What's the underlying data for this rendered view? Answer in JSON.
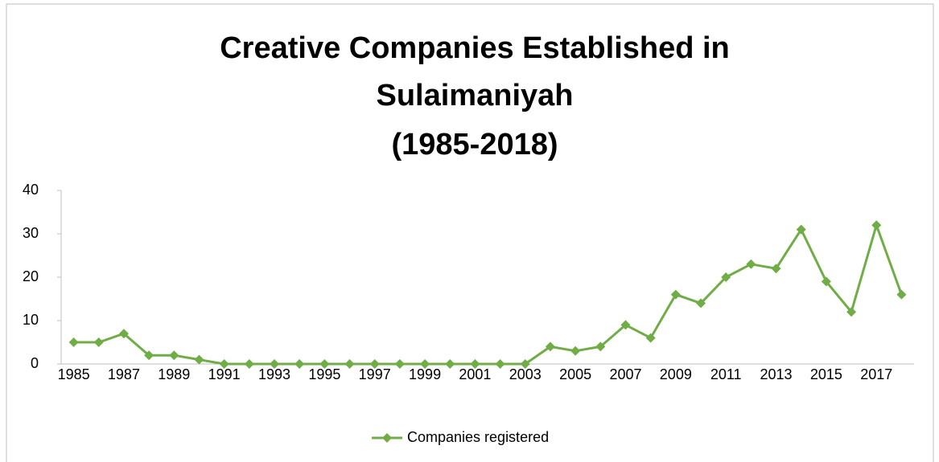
{
  "chart_data": {
    "type": "line",
    "title": [
      "Creative Companies Established in",
      "Sulaimaniyah",
      "(1985-2018)"
    ],
    "categories": [
      "1985",
      null,
      "1987",
      null,
      "1989",
      null,
      "1991",
      null,
      "1993",
      null,
      "1995",
      null,
      "1997",
      null,
      "1999",
      null,
      "2001",
      null,
      "2003",
      null,
      "2005",
      null,
      "2007",
      null,
      "2009",
      null,
      "2011",
      null,
      "2013",
      null,
      "2015",
      null,
      "2017",
      null
    ],
    "series": [
      {
        "name": "Companies registered",
        "color": "#70ad47",
        "values": [
          5,
          5,
          7,
          2,
          2,
          1,
          0,
          0,
          0,
          0,
          0,
          0,
          0,
          0,
          0,
          0,
          0,
          0,
          0,
          4,
          3,
          4,
          9,
          6,
          16,
          14,
          20,
          23,
          22,
          31,
          19,
          12,
          32,
          16
        ]
      }
    ],
    "ylim": [
      0,
      40
    ],
    "yticks": [
      0,
      10,
      20,
      30,
      40
    ],
    "grid": false,
    "legend": "bottom"
  }
}
